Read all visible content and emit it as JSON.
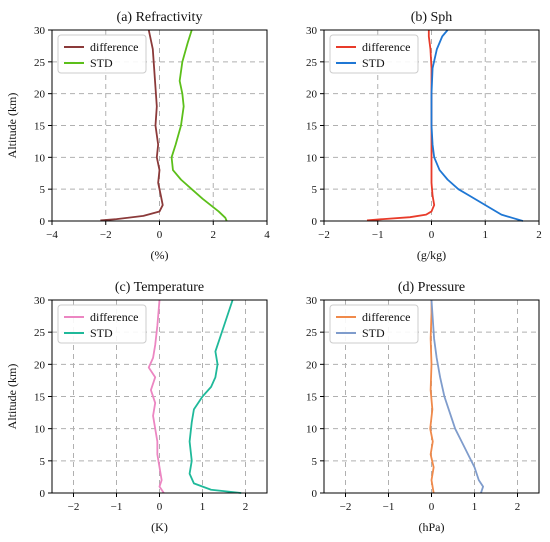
{
  "chart_data": [
    {
      "type": "line",
      "title": "(a) Refractivity",
      "xlabel": "(%)",
      "ylabel": "Altitude (km)",
      "xlim": [
        -4,
        4
      ],
      "ylim": [
        0,
        30
      ],
      "xticks": [
        "−4",
        "−2",
        "0",
        "2",
        "4"
      ],
      "yticks": [
        "0",
        "5",
        "10",
        "15",
        "20",
        "25",
        "30"
      ],
      "grid": true,
      "legend_position": "top-left",
      "series": [
        {
          "name": "difference",
          "color": "#8b3a3a",
          "x": [
            -2.2,
            -1.6,
            -0.6,
            0.0,
            0.12,
            0.05,
            -0.05,
            0.0,
            -0.1,
            -0.05,
            -0.15,
            -0.1,
            -0.15,
            -0.2,
            -0.25,
            -0.4
          ],
          "y": [
            0.1,
            0.3,
            0.8,
            1.5,
            2.5,
            4,
            6,
            8,
            10,
            12,
            15,
            18,
            21,
            24,
            27,
            30
          ]
        },
        {
          "name": "STD",
          "color": "#5cbf1a",
          "x": [
            2.5,
            2.45,
            2.2,
            1.9,
            1.6,
            1.2,
            0.8,
            0.5,
            0.45,
            0.6,
            0.8,
            0.9,
            0.85,
            0.75,
            0.85,
            1.05,
            1.2
          ],
          "y": [
            0,
            0.5,
            1.5,
            2.5,
            3.5,
            5,
            6.5,
            8,
            10,
            12,
            15,
            18,
            20,
            22,
            25,
            28,
            30
          ]
        }
      ]
    },
    {
      "type": "line",
      "title": "(b) Sph",
      "xlabel": "(g/kg)",
      "ylabel": "",
      "xlim": [
        -2,
        2
      ],
      "ylim": [
        0,
        30
      ],
      "xticks": [
        "−2",
        "−1",
        "0",
        "1",
        "2"
      ],
      "yticks": [
        "0",
        "5",
        "10",
        "15",
        "20",
        "25",
        "30"
      ],
      "grid": true,
      "legend_position": "top-left",
      "series": [
        {
          "name": "difference",
          "color": "#e83b2a",
          "x": [
            -1.2,
            -0.9,
            -0.4,
            -0.1,
            0.0,
            0.05,
            0.02,
            0.0,
            0.0,
            0.0,
            0.0,
            0.0,
            0.0,
            -0.02,
            -0.05,
            -0.05
          ],
          "y": [
            0.1,
            0.3,
            0.6,
            1.0,
            1.5,
            2.5,
            4,
            6,
            8,
            10,
            15,
            20,
            24,
            27,
            29,
            30
          ]
        },
        {
          "name": "STD",
          "color": "#1f77d4",
          "x": [
            1.7,
            1.5,
            1.3,
            1.1,
            0.9,
            0.7,
            0.5,
            0.3,
            0.15,
            0.05,
            0.02,
            0.0,
            0.0,
            0.02,
            0.1,
            0.2,
            0.3
          ],
          "y": [
            0,
            0.5,
            1.0,
            2.0,
            3.0,
            4.0,
            5.0,
            6.5,
            8,
            10,
            12,
            15,
            20,
            24,
            27,
            29,
            30
          ]
        }
      ]
    },
    {
      "type": "line",
      "title": "(c) Temperature",
      "xlabel": "(K)",
      "ylabel": "Altitude (km)",
      "xlim": [
        -2.5,
        2.5
      ],
      "ylim": [
        0,
        30
      ],
      "xticks": [
        "−2",
        "−1",
        "0",
        "1",
        "2"
      ],
      "yticks": [
        "0",
        "5",
        "10",
        "15",
        "20",
        "25",
        "30"
      ],
      "grid": true,
      "legend_position": "top-left",
      "series": [
        {
          "name": "difference",
          "color": "#ec86c2",
          "x": [
            0.1,
            0.0,
            0.05,
            0.0,
            -0.05,
            -0.05,
            -0.1,
            -0.15,
            -0.1,
            -0.2,
            -0.1,
            -0.25,
            -0.15,
            -0.1,
            -0.05,
            0.0
          ],
          "y": [
            0,
            1,
            2,
            4,
            6,
            8,
            10,
            12,
            14,
            16,
            18,
            19.5,
            21,
            23,
            26,
            30
          ]
        },
        {
          "name": "STD",
          "color": "#1fb99a",
          "x": [
            1.9,
            1.2,
            0.8,
            0.7,
            0.75,
            0.7,
            0.75,
            0.8,
            1.0,
            1.2,
            1.3,
            1.35,
            1.3,
            1.4,
            1.5,
            1.6,
            1.7
          ],
          "y": [
            0,
            0.5,
            1.5,
            3,
            5,
            8,
            11,
            13,
            15,
            16.5,
            18,
            20,
            22,
            24,
            26,
            28,
            30
          ]
        }
      ]
    },
    {
      "type": "line",
      "title": "(d) Pressure",
      "xlabel": "(hPa)",
      "ylabel": "",
      "xlim": [
        -2.5,
        2.5
      ],
      "ylim": [
        0,
        30
      ],
      "xticks": [
        "−2",
        "−1",
        "0",
        "1",
        "2"
      ],
      "yticks": [
        "0",
        "5",
        "10",
        "15",
        "20",
        "25",
        "30"
      ],
      "grid": true,
      "legend_position": "top-left",
      "series": [
        {
          "name": "difference",
          "color": "#f08a4b",
          "x": [
            0.05,
            0.0,
            0.05,
            -0.02,
            0.03,
            -0.03,
            0.02,
            -0.02,
            0.0,
            -0.02,
            0.0,
            0.0
          ],
          "y": [
            0,
            2,
            4,
            6,
            8,
            10,
            13,
            16,
            20,
            24,
            28,
            30
          ]
        },
        {
          "name": "STD",
          "color": "#7f9ccc",
          "x": [
            1.15,
            1.2,
            1.1,
            1.0,
            0.85,
            0.7,
            0.55,
            0.45,
            0.3,
            0.2,
            0.12,
            0.06,
            0.03,
            0.0
          ],
          "y": [
            0,
            1,
            2,
            4,
            6,
            8,
            10,
            12,
            15,
            18,
            21,
            24,
            27,
            30
          ]
        }
      ]
    }
  ]
}
